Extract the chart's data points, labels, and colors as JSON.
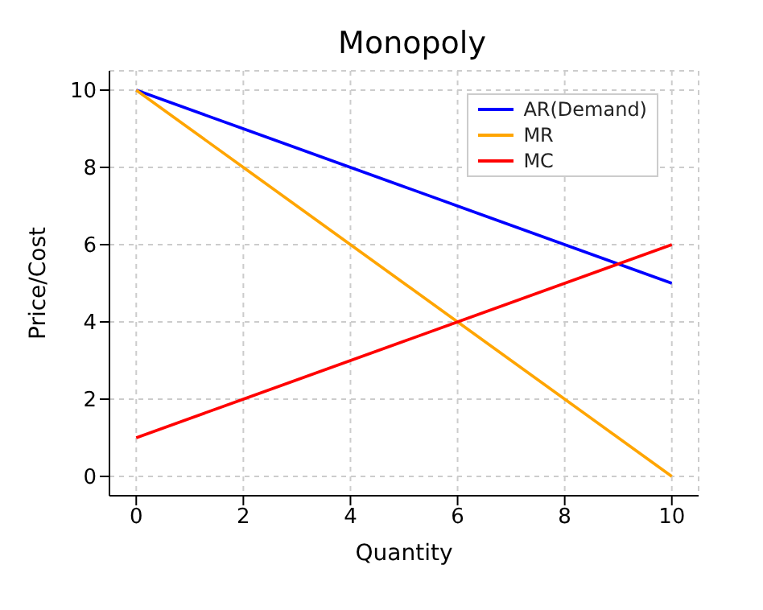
{
  "chart_data": {
    "type": "line",
    "title": "Monopoly",
    "xlabel": "Quantity",
    "ylabel": "Price/Cost",
    "x": [
      0,
      1,
      2,
      3,
      4,
      5,
      6,
      7,
      8,
      9,
      10
    ],
    "series": [
      {
        "name": "AR(Demand)",
        "color": "#0000ff",
        "values": [
          10,
          9.5,
          9,
          8.5,
          8,
          7.5,
          7,
          6.5,
          6,
          5.5,
          5
        ]
      },
      {
        "name": "MR",
        "color": "#ffa500",
        "values": [
          10,
          9,
          8,
          7,
          6,
          5,
          4,
          3,
          2,
          1,
          0
        ]
      },
      {
        "name": "MC",
        "color": "#ff0000",
        "values": [
          1,
          1.5,
          2,
          2.5,
          3,
          3.5,
          4,
          4.5,
          5,
          5.5,
          6
        ]
      }
    ],
    "xlim": [
      -0.5,
      10.5
    ],
    "xticks": [
      0,
      2,
      4,
      6,
      8,
      10
    ],
    "ylim": [
      -0.5,
      10.5
    ],
    "yticks": [
      0,
      2,
      4,
      6,
      8,
      10
    ],
    "grid": true,
    "legend": "top right",
    "line_style": "solid"
  }
}
